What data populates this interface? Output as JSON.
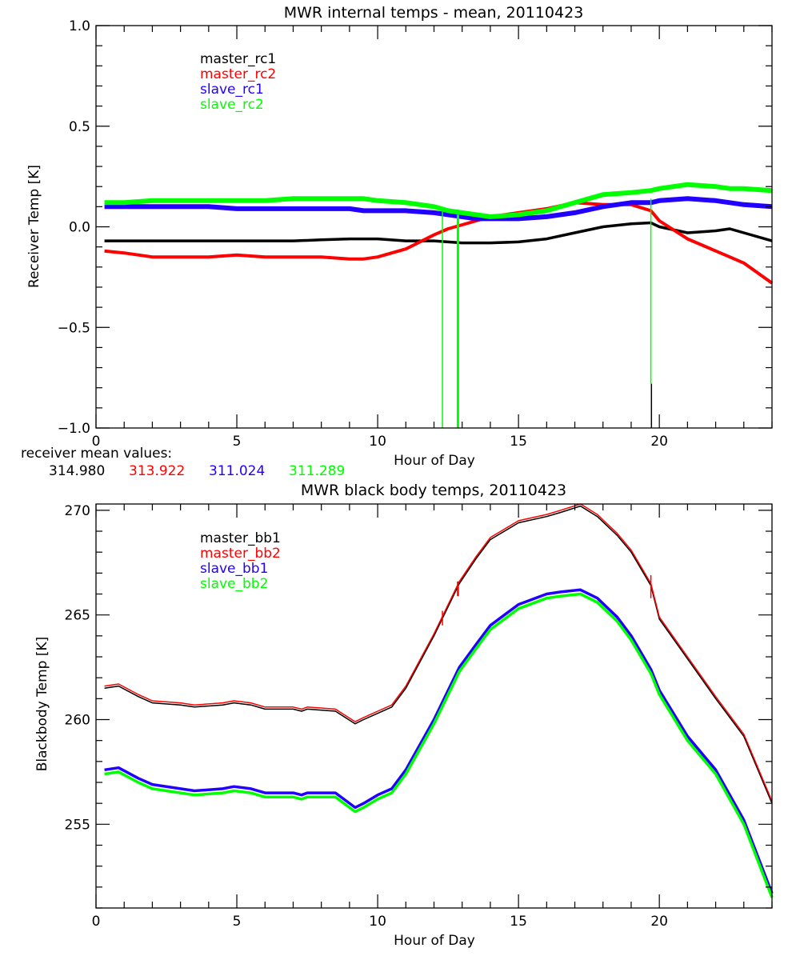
{
  "colors": {
    "black": "#000000",
    "red": "#ff0000",
    "blue": "#2200ff",
    "green": "#00ff00"
  },
  "mean_values_label": "receiver mean values:",
  "mean_values": [
    {
      "text": "314.980",
      "color": "#000000"
    },
    {
      "text": "313.922",
      "color": "#ff0000"
    },
    {
      "text": "311.024",
      "color": "#2200ff"
    },
    {
      "text": "311.289",
      "color": "#00ff00"
    }
  ],
  "chart_data": [
    {
      "type": "line",
      "title": "MWR internal temps - mean, 20110423",
      "xlabel": "Hour of Day",
      "ylabel": "Receiver Temp [K]",
      "xlim": [
        0,
        24
      ],
      "ylim": [
        -1.0,
        1.0
      ],
      "xticks": [
        "0",
        "5",
        "10",
        "15",
        "20"
      ],
      "xtick_values": [
        0,
        5,
        10,
        15,
        20
      ],
      "yticks": [
        "-1.0",
        "-0.5",
        "0.0",
        "0.5",
        "1.0"
      ],
      "ytick_values": [
        -1.0,
        -0.5,
        0.0,
        0.5,
        1.0
      ],
      "legend_position": "top-left",
      "x": [
        0.3,
        1,
        2,
        3,
        4,
        5,
        6,
        7,
        8,
        9,
        9.5,
        10,
        11,
        12,
        12.5,
        13,
        13.5,
        14,
        15,
        16,
        17,
        18,
        19,
        19.7,
        20,
        21,
        22,
        22.5,
        23,
        24
      ],
      "series": [
        {
          "name": "master_rc1",
          "color": "#000000",
          "values": [
            -0.07,
            -0.07,
            -0.07,
            -0.07,
            -0.07,
            -0.07,
            -0.07,
            -0.07,
            -0.065,
            -0.06,
            -0.06,
            -0.06,
            -0.07,
            -0.07,
            -0.075,
            -0.08,
            -0.08,
            -0.08,
            -0.075,
            -0.06,
            -0.03,
            0.0,
            0.015,
            0.02,
            0.0,
            -0.03,
            -0.02,
            -0.01,
            -0.03,
            -0.07
          ]
        },
        {
          "name": "master_rc2",
          "color": "#ff0000",
          "values": [
            -0.12,
            -0.13,
            -0.15,
            -0.15,
            -0.15,
            -0.14,
            -0.15,
            -0.15,
            -0.15,
            -0.16,
            -0.16,
            -0.15,
            -0.11,
            -0.04,
            -0.01,
            0.01,
            0.03,
            0.05,
            0.07,
            0.09,
            0.12,
            0.11,
            0.11,
            0.08,
            0.03,
            -0.06,
            -0.12,
            -0.15,
            -0.18,
            -0.28
          ]
        },
        {
          "name": "slave_rc1",
          "color": "#2200ff",
          "values": [
            0.1,
            0.1,
            0.1,
            0.1,
            0.1,
            0.09,
            0.09,
            0.09,
            0.09,
            0.09,
            0.08,
            0.08,
            0.08,
            0.07,
            0.06,
            0.05,
            0.04,
            0.04,
            0.04,
            0.05,
            0.07,
            0.1,
            0.12,
            0.12,
            0.13,
            0.14,
            0.13,
            0.12,
            0.11,
            0.1
          ]
        },
        {
          "name": "slave_rc2",
          "color": "#00ff00",
          "values": [
            0.12,
            0.12,
            0.13,
            0.13,
            0.13,
            0.13,
            0.13,
            0.14,
            0.14,
            0.14,
            0.14,
            0.13,
            0.12,
            0.1,
            0.08,
            0.07,
            0.06,
            0.05,
            0.06,
            0.08,
            0.12,
            0.16,
            0.17,
            0.18,
            0.19,
            0.21,
            0.2,
            0.19,
            0.19,
            0.18
          ]
        }
      ],
      "spikes": [
        {
          "x": 12.3,
          "from": 0.08,
          "to": -1.0,
          "color": "#00ff00",
          "series": "slave_rc2"
        },
        {
          "x": 12.85,
          "from": 0.06,
          "to": -1.0,
          "color": "#00ff00",
          "series": "slave_rc2"
        },
        {
          "x": 19.7,
          "from": 0.14,
          "to": -0.78,
          "color": "#00ff00",
          "series": "slave_rc2"
        },
        {
          "x": 19.72,
          "from": -0.78,
          "to": -1.0,
          "color": "#000000",
          "series": "master_rc1"
        }
      ]
    },
    {
      "type": "line",
      "title": "MWR black body temps, 20110423",
      "xlabel": "Hour of Day",
      "ylabel": "Blackbody Temp [K]",
      "xlim": [
        0,
        24
      ],
      "ylim": [
        251.0,
        270.3
      ],
      "xticks": [
        "0",
        "5",
        "10",
        "15",
        "20"
      ],
      "xtick_values": [
        0,
        5,
        10,
        15,
        20
      ],
      "yticks": [
        "255",
        "260",
        "265",
        "270"
      ],
      "ytick_values": [
        255,
        260,
        265,
        270
      ],
      "legend_position": "top-left",
      "x": [
        0.3,
        0.8,
        1.5,
        2,
        3,
        3.5,
        4.5,
        4.9,
        5.5,
        6,
        6.5,
        7,
        7.3,
        7.5,
        8.5,
        9.2,
        9.5,
        10,
        10.5,
        11,
        12,
        12.9,
        13.5,
        14,
        15,
        16,
        16.5,
        17.2,
        17.8,
        18.5,
        19,
        19.7,
        20,
        21,
        22,
        23,
        24
      ],
      "series": [
        {
          "name": "master_bb1",
          "color": "#000000",
          "values": [
            261.5,
            261.6,
            261.1,
            260.8,
            260.7,
            260.6,
            260.7,
            260.8,
            260.7,
            260.5,
            260.5,
            260.5,
            260.4,
            260.5,
            260.4,
            259.8,
            260.0,
            260.3,
            260.6,
            261.5,
            264.0,
            266.5,
            267.7,
            268.6,
            269.4,
            269.7,
            269.9,
            270.2,
            269.7,
            268.8,
            268.0,
            266.4,
            264.8,
            262.9,
            261.0,
            259.2,
            256.0
          ]
        },
        {
          "name": "master_bb2",
          "color": "#ff0000",
          "values": [
            261.6,
            261.7,
            261.2,
            260.9,
            260.8,
            260.7,
            260.8,
            260.9,
            260.8,
            260.6,
            260.6,
            260.6,
            260.5,
            260.6,
            260.5,
            259.9,
            260.1,
            260.4,
            260.7,
            261.6,
            264.1,
            266.6,
            267.8,
            268.7,
            269.5,
            269.8,
            270.0,
            270.3,
            269.8,
            268.9,
            268.1,
            266.5,
            264.9,
            263.0,
            261.1,
            259.3,
            256.1
          ]
        },
        {
          "name": "slave_bb1",
          "color": "#2200ff",
          "values": [
            257.6,
            257.7,
            257.2,
            256.9,
            256.7,
            256.6,
            256.7,
            256.8,
            256.7,
            256.5,
            256.5,
            256.5,
            256.4,
            256.5,
            256.5,
            255.8,
            256.0,
            256.4,
            256.7,
            257.6,
            260.0,
            262.5,
            263.6,
            264.5,
            265.5,
            266.0,
            266.1,
            266.2,
            265.8,
            264.9,
            264.0,
            262.4,
            261.4,
            259.2,
            257.6,
            255.2,
            251.7
          ]
        },
        {
          "name": "slave_bb2",
          "color": "#00ff00",
          "values": [
            257.4,
            257.5,
            257.0,
            256.7,
            256.5,
            256.4,
            256.5,
            256.6,
            256.5,
            256.3,
            256.3,
            256.3,
            256.2,
            256.3,
            256.3,
            255.6,
            255.8,
            256.2,
            256.5,
            257.4,
            259.8,
            262.3,
            263.4,
            264.3,
            265.3,
            265.8,
            265.9,
            266.0,
            265.6,
            264.7,
            263.8,
            262.2,
            261.2,
            259.0,
            257.4,
            255.0,
            251.5
          ]
        }
      ],
      "spikes": [
        {
          "x": 12.3,
          "from": 265.2,
          "to": 264.5,
          "color": "#ff0000",
          "series": "master_bb2"
        },
        {
          "x": 12.85,
          "from": 266.6,
          "to": 265.9,
          "color": "#ff0000",
          "series": "master_bb2"
        },
        {
          "x": 19.7,
          "from": 266.9,
          "to": 265.8,
          "color": "#ff0000",
          "series": "master_bb2"
        }
      ]
    }
  ]
}
